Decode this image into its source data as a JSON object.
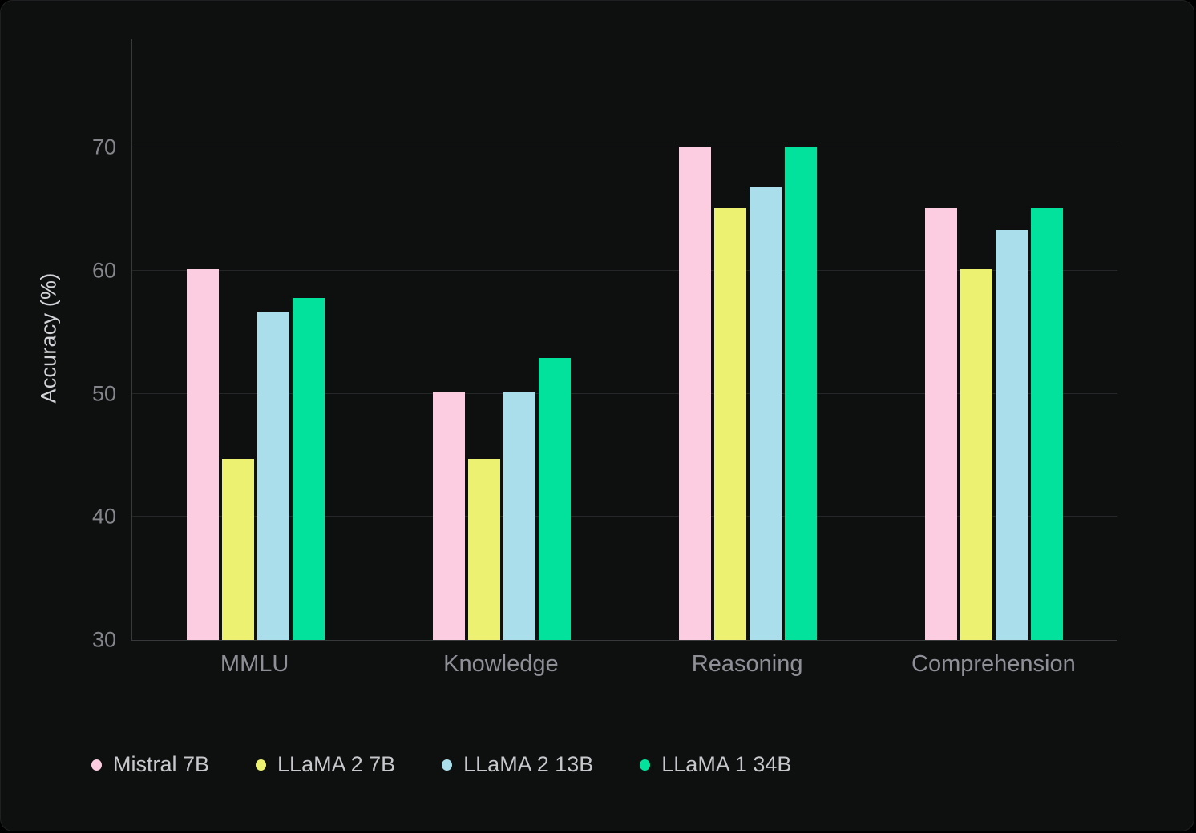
{
  "chart_data": {
    "type": "bar",
    "variant": "grouped",
    "title": "",
    "ylabel": "Accuracy (%)",
    "xlabel": "",
    "categories": [
      "MMLU",
      "Knowledge",
      "Reasoning",
      "Comprehension"
    ],
    "series": [
      {
        "name": "Mistral 7B",
        "color": "#fccde1",
        "values": [
          60.1,
          50.1,
          70.1,
          65.1
        ]
      },
      {
        "name": "LLaMA 2 7B",
        "color": "#edf172",
        "values": [
          44.7,
          44.7,
          65.1,
          60.1
        ]
      },
      {
        "name": "LLaMA 2 13B",
        "color": "#abdeeb",
        "values": [
          56.7,
          50.1,
          66.8,
          63.3
        ]
      },
      {
        "name": "LLaMA 1 34B",
        "color": "#03e29c",
        "values": [
          57.8,
          52.9,
          70.1,
          65.1
        ]
      }
    ],
    "yticks": [
      30,
      40,
      50,
      60,
      70
    ],
    "ylim": [
      30,
      78.8
    ],
    "grid": true,
    "legend_position": "bottom-left"
  },
  "colors": {
    "page_background": "#000000",
    "panel_background": "#0e0f0f",
    "gridline": "#252627",
    "axis_spine": "#37393b",
    "tick_text": "#85868c",
    "category_text": "#8f9097",
    "legend_text": "#c7c8cc",
    "axis_title_text": "#d2d3d7"
  }
}
